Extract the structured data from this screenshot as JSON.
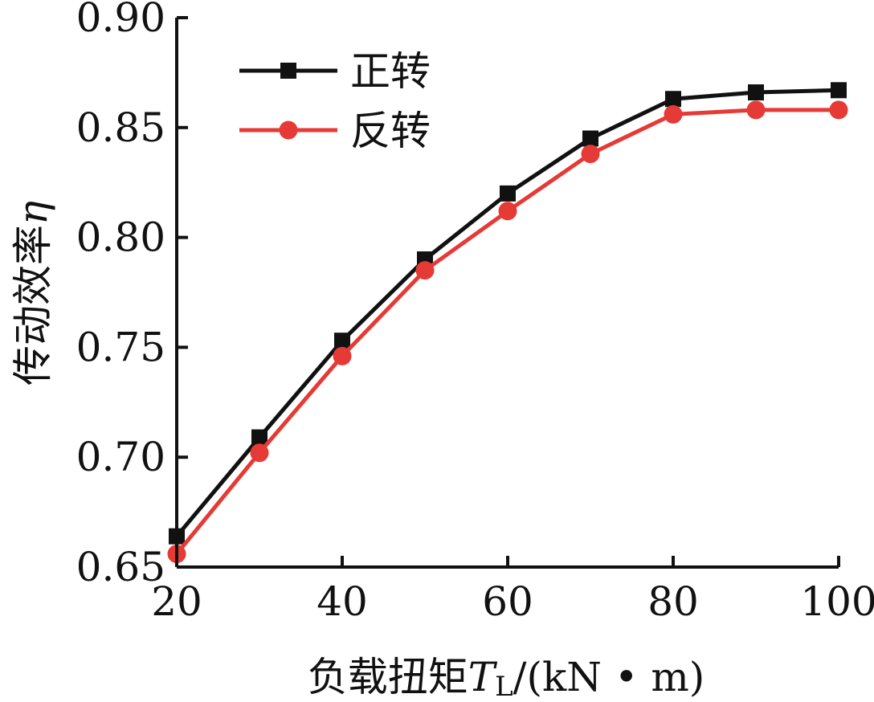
{
  "chart_data": {
    "type": "line",
    "xlabel_main": "负载扭矩",
    "xlabel_var": "T",
    "xlabel_sub": "L",
    "xlabel_unit": "/(kN • m)",
    "ylabel_main": "传动效率",
    "ylabel_var": "η",
    "xlim": [
      20,
      100
    ],
    "ylim": [
      0.65,
      0.9
    ],
    "x_ticks": [
      20,
      40,
      60,
      80,
      100
    ],
    "y_ticks": [
      0.65,
      0.7,
      0.75,
      0.8,
      0.85,
      0.9
    ],
    "x_tick_labels": [
      "20",
      "40",
      "60",
      "80",
      "100"
    ],
    "y_tick_labels": [
      "0.65",
      "0.70",
      "0.75",
      "0.80",
      "0.85",
      "0.90"
    ],
    "x": [
      20,
      30,
      40,
      50,
      60,
      70,
      80,
      90,
      100
    ],
    "legend_position": "top-left",
    "grid": false,
    "series": [
      {
        "name": "正转",
        "color": "#111111",
        "marker": "square",
        "values": [
          0.664,
          0.709,
          0.753,
          0.79,
          0.82,
          0.845,
          0.863,
          0.866,
          0.867
        ]
      },
      {
        "name": "反转",
        "color": "#e53a35",
        "marker": "circle",
        "values": [
          0.656,
          0.702,
          0.746,
          0.785,
          0.812,
          0.838,
          0.856,
          0.858,
          0.858
        ]
      }
    ]
  }
}
